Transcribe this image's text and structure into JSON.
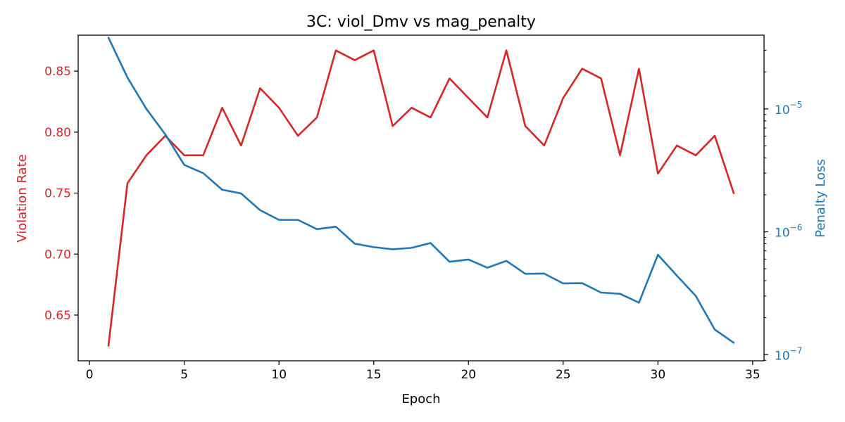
{
  "chart_data": {
    "type": "line",
    "title": "3C: viol_Dmv vs mag_penalty",
    "xlabel": "Epoch",
    "ylabel_left": "Violation Rate",
    "ylabel_right": "Penalty Loss",
    "xlim": [
      -0.6,
      35.6
    ],
    "ylim_left": [
      0.6125,
      0.8795
    ],
    "ylim_right_log10": [
      -7.05,
      -4.4
    ],
    "y_right_scale": "log",
    "grid": false,
    "colors": {
      "left": "#d62728",
      "right": "#1f77b4",
      "axis": "#000000"
    },
    "x_ticks": [
      0,
      5,
      10,
      15,
      20,
      25,
      30,
      35
    ],
    "y_left_ticks": [
      "0.65",
      "0.70",
      "0.75",
      "0.80",
      "0.85"
    ],
    "y_right_ticks": [
      {
        "value": 1e-07,
        "base": "10",
        "exp": "−7"
      },
      {
        "value": 1e-06,
        "base": "10",
        "exp": "−6"
      },
      {
        "value": 1e-05,
        "base": "10",
        "exp": "−5"
      }
    ],
    "x": [
      1,
      2,
      3,
      4,
      5,
      6,
      7,
      8,
      9,
      10,
      11,
      12,
      13,
      14,
      15,
      16,
      17,
      18,
      19,
      20,
      21,
      22,
      23,
      24,
      25,
      26,
      27,
      28,
      29,
      30,
      31,
      32,
      33,
      34
    ],
    "series": [
      {
        "name": "Violation Rate",
        "axis": "left",
        "color": "#d62728",
        "values": [
          0.625,
          0.758,
          0.781,
          0.797,
          0.781,
          0.781,
          0.82,
          0.789,
          0.836,
          0.82,
          0.797,
          0.812,
          0.867,
          0.859,
          0.867,
          0.805,
          0.82,
          0.812,
          0.844,
          0.828,
          0.812,
          0.867,
          0.805,
          0.789,
          0.828,
          0.852,
          0.844,
          0.781,
          0.852,
          0.766,
          0.789,
          0.781,
          0.797,
          0.75
        ]
      },
      {
        "name": "Penalty Loss",
        "axis": "right",
        "color": "#1f77b4",
        "values": [
          3.8e-05,
          1.8e-05,
          1e-05,
          6.2e-06,
          3.5e-06,
          3e-06,
          2.2e-06,
          2.05e-06,
          1.5e-06,
          1.25e-06,
          1.25e-06,
          1.05e-06,
          1.1e-06,
          8e-07,
          7.5e-07,
          7.2e-07,
          7.4e-07,
          8.1e-07,
          5.7e-07,
          5.95e-07,
          5.1e-07,
          5.8e-07,
          4.55e-07,
          4.57e-07,
          3.8e-07,
          3.82e-07,
          3.2e-07,
          3.13e-07,
          2.65e-07,
          6.5e-07,
          4.4e-07,
          3e-07,
          1.6e-07,
          1.25e-07
        ]
      }
    ]
  }
}
